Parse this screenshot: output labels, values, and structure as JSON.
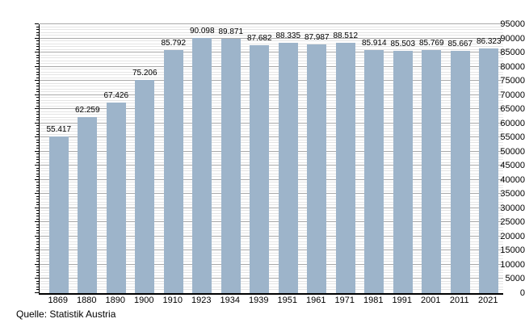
{
  "chart_data": {
    "type": "bar",
    "title": "",
    "xlabel": "",
    "ylabel": "",
    "categories": [
      "1869",
      "1880",
      "1890",
      "1900",
      "1910",
      "1923",
      "1934",
      "1939",
      "1951",
      "1961",
      "1971",
      "1981",
      "1991",
      "2001",
      "2011",
      "2021"
    ],
    "values": [
      55417,
      62259,
      67426,
      75206,
      85792,
      90098,
      89871,
      87682,
      88335,
      87987,
      88512,
      85914,
      85503,
      85769,
      85667,
      86323
    ],
    "value_labels": [
      "55.417",
      "62.259",
      "67.426",
      "75.206",
      "85.792",
      "90.098",
      "89.871",
      "87.682",
      "88.335",
      "87.987",
      "88.512",
      "85.914",
      "85.503",
      "85.769",
      "85.667",
      "86.323"
    ],
    "ylim": [
      0,
      95000
    ],
    "y_major_step": 5000,
    "y_minor_step": 1000,
    "y_tick_labels": [
      "0",
      "5000",
      "10000",
      "15000",
      "20000",
      "25000",
      "30000",
      "35000",
      "40000",
      "45000",
      "50000",
      "55000",
      "60000",
      "65000",
      "70000",
      "75000",
      "80000",
      "85000",
      "90000",
      "95000"
    ],
    "grid": "major-and-minor-horizontal",
    "legend": "none",
    "source": "Quelle: Statistik Austria",
    "colors": {
      "bar": "#9DB4CA",
      "major_grid": "#A9A9A9",
      "minor_grid": "#E4E4E4",
      "axis": "#000000",
      "text": "#000000",
      "background": "#FFFFFF"
    }
  }
}
